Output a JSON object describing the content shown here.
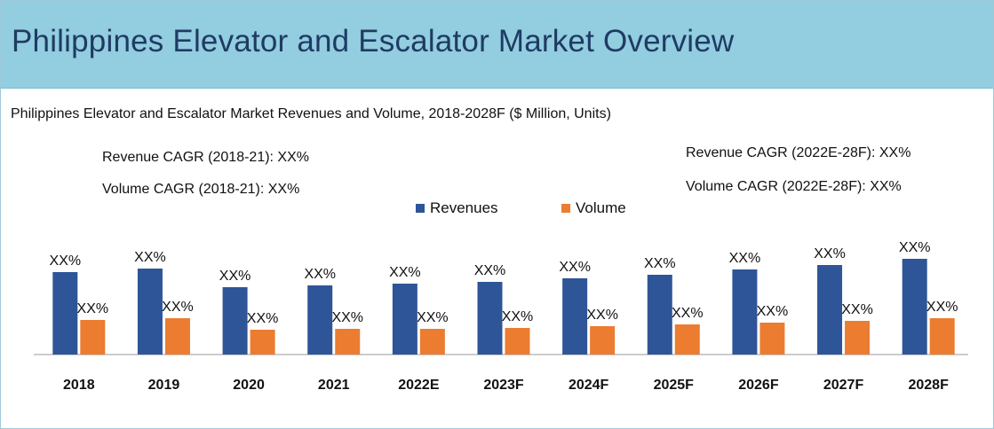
{
  "header": {
    "title": "Philippines Elevator and Escalator Market Overview"
  },
  "chart_data": {
    "type": "bar",
    "title": "Philippines Elevator and Escalator Market Revenues and Volume, 2018-2028F ($ Million, Units)",
    "categories": [
      "2018",
      "2019",
      "2020",
      "2021",
      "2022E",
      "2023F",
      "2024F",
      "2025F",
      "2026F",
      "2027F",
      "2028F"
    ],
    "series": [
      {
        "name": "Revenues",
        "color": "#2e5597",
        "values": [
          93,
          97,
          76,
          78,
          80,
          82,
          86,
          90,
          96,
          101,
          108
        ],
        "labels": [
          "XX%",
          "XX%",
          "XX%",
          "XX%",
          "XX%",
          "XX%",
          "XX%",
          "XX%",
          "XX%",
          "XX%",
          "XX%"
        ]
      },
      {
        "name": "Volume",
        "color": "#ec7c30",
        "values": [
          39,
          41,
          28,
          29,
          29,
          30,
          32,
          34,
          36,
          38,
          41
        ],
        "labels": [
          "XX%",
          "XX%",
          "XX%",
          "XX%",
          "XX%",
          "XX%",
          "XX%",
          "XX%",
          "XX%",
          "XX%",
          "XX%"
        ]
      }
    ],
    "ylim": [
      0,
      125
    ],
    "xlabel": "",
    "ylabel": "",
    "grid": false,
    "legend": "top-center",
    "annotations": {
      "left": [
        "Revenue CAGR (2018-21): XX%",
        "Volume CAGR (2018-21): XX%"
      ],
      "right": [
        "Revenue CAGR (2022E-28F): XX%",
        "Volume CAGR (2022E-28F): XX%"
      ]
    }
  }
}
